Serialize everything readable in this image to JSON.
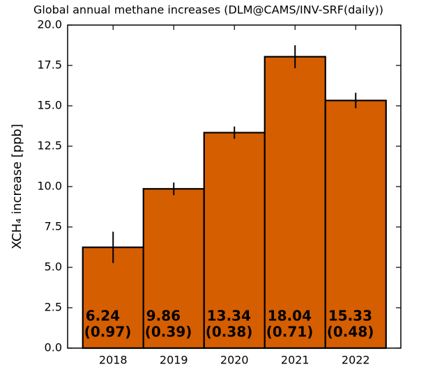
{
  "chart_data": {
    "type": "bar",
    "title": "Global annual methane increases (DLM@CAMS/INV-SRF(daily))",
    "ylabel": "XCH₄ increase [ppb]",
    "categories": [
      "2018",
      "2019",
      "2020",
      "2021",
      "2022"
    ],
    "values": [
      6.24,
      9.86,
      13.34,
      18.04,
      15.33
    ],
    "errors": [
      0.97,
      0.39,
      0.38,
      0.71,
      0.48
    ],
    "error_labels": [
      "(0.97)",
      "(0.39)",
      "(0.38)",
      "(0.71)",
      "(0.48)"
    ],
    "color": "#d55e00",
    "ylim": [
      0,
      20
    ],
    "yticks": [
      {
        "value": 0,
        "label": "0.0"
      },
      2.5,
      {
        "value": 5,
        "label": "5.0"
      },
      7.5,
      {
        "value": 10,
        "label": "10.0"
      },
      12.5,
      {
        "value": 15,
        "label": "15.0"
      },
      17.5,
      {
        "value": 20,
        "label": "20.0"
      }
    ]
  }
}
